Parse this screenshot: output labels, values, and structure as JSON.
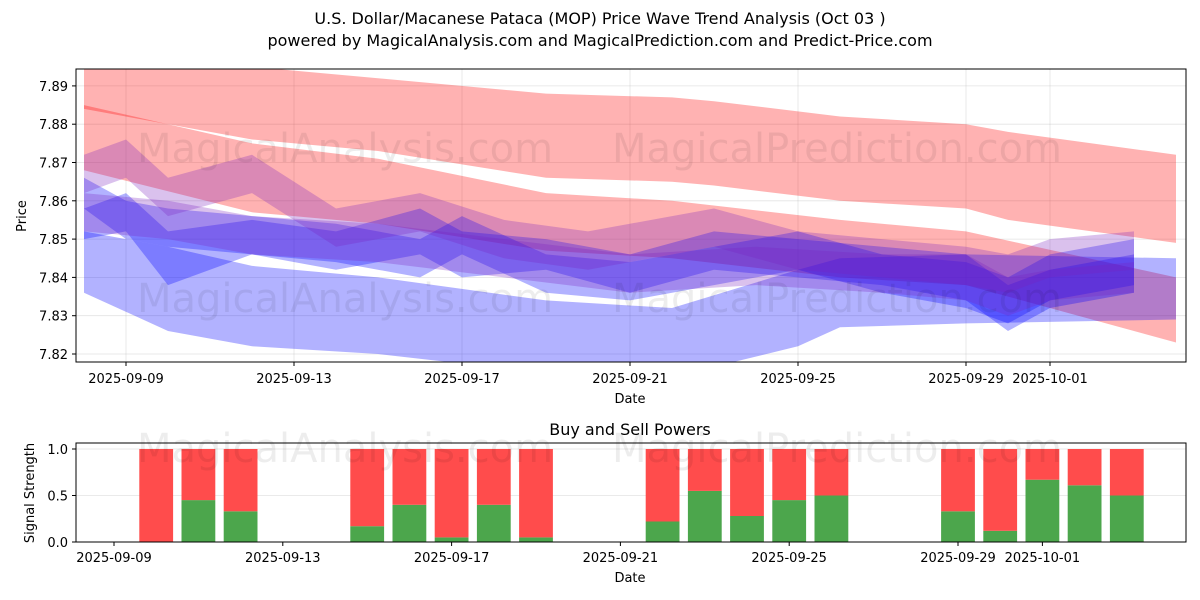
{
  "title": "U.S. Dollar/Macanese Pataca (MOP) Price Wave Trend Analysis (Oct 03 )",
  "subtitle": "powered by MagicalAnalysis.com and MagicalPrediction.com and Predict-Price.com",
  "watermarks": [
    "MagicalAnalysis.com",
    "MagicalPrediction.com"
  ],
  "colors": {
    "buy": "#4ca64c",
    "sell": "#ff4c4c",
    "red_band": "#ff0000",
    "blue_band": "#0000ff",
    "purple": "#7a1fc0"
  },
  "chart_data": [
    {
      "type": "area",
      "name": "price-wave",
      "title": "",
      "xlabel": "Date",
      "ylabel": "Price",
      "ylim": [
        7.818,
        7.894
      ],
      "xlim": [
        "2025-09-07",
        "2025-10-05"
      ],
      "yticks": [
        "7.82",
        "7.83",
        "7.84",
        "7.85",
        "7.86",
        "7.87",
        "7.88",
        "7.89"
      ],
      "xticks": [
        "2025-09-09",
        "2025-09-13",
        "2025-09-17",
        "2025-09-21",
        "2025-09-25",
        "2025-09-29",
        "2025-10-01"
      ],
      "grid": true,
      "series": [
        {
          "name": "red-upper-band",
          "color": "red",
          "x": [
            "2025-09-08",
            "2025-09-12",
            "2025-09-15",
            "2025-09-19",
            "2025-09-22",
            "2025-09-23",
            "2025-09-26",
            "2025-09-29",
            "2025-09-30",
            "2025-10-04"
          ],
          "upper": [
            7.898,
            7.895,
            7.892,
            7.888,
            7.887,
            7.886,
            7.882,
            7.88,
            7.878,
            7.872
          ],
          "lower": [
            7.884,
            7.876,
            7.873,
            7.866,
            7.865,
            7.864,
            7.86,
            7.858,
            7.855,
            7.849
          ]
        },
        {
          "name": "red-lower-band",
          "color": "red",
          "x": [
            "2025-09-08",
            "2025-09-12",
            "2025-09-15",
            "2025-09-19",
            "2025-09-22",
            "2025-09-26",
            "2025-09-29",
            "2025-10-04"
          ],
          "upper": [
            7.885,
            7.875,
            7.871,
            7.862,
            7.86,
            7.855,
            7.852,
            7.84
          ],
          "lower": [
            7.868,
            7.857,
            7.854,
            7.847,
            7.845,
            7.84,
            7.838,
            7.823
          ]
        },
        {
          "name": "blue-lower-band",
          "color": "blue",
          "x": [
            "2025-09-08",
            "2025-09-10",
            "2025-09-12",
            "2025-09-15",
            "2025-09-19",
            "2025-09-22",
            "2025-09-25",
            "2025-09-26",
            "2025-09-29",
            "2025-10-04"
          ],
          "upper": [
            7.852,
            7.848,
            7.843,
            7.84,
            7.834,
            7.832,
            7.842,
            7.845,
            7.846,
            7.845
          ],
          "lower": [
            7.836,
            7.826,
            7.822,
            7.82,
            7.815,
            7.814,
            7.822,
            7.827,
            7.828,
            7.829
          ]
        },
        {
          "name": "wave-mid-1",
          "color": "blue",
          "x": [
            "2025-09-08",
            "2025-09-09",
            "2025-09-10",
            "2025-09-12",
            "2025-09-14",
            "2025-09-16",
            "2025-09-17",
            "2025-09-19",
            "2025-09-21",
            "2025-09-23",
            "2025-09-25",
            "2025-09-27",
            "2025-09-29",
            "2025-09-30",
            "2025-10-01",
            "2025-10-03"
          ],
          "upper": [
            7.858,
            7.862,
            7.852,
            7.855,
            7.852,
            7.858,
            7.852,
            7.85,
            7.846,
            7.852,
            7.85,
            7.848,
            7.846,
            7.838,
            7.842,
            7.846
          ],
          "lower": [
            7.85,
            7.852,
            7.838,
            7.846,
            7.842,
            7.846,
            7.84,
            7.842,
            7.836,
            7.842,
            7.84,
            7.838,
            7.834,
            7.826,
            7.832,
            7.836
          ]
        },
        {
          "name": "wave-mid-2",
          "color": "blue",
          "x": [
            "2025-09-08",
            "2025-09-09",
            "2025-09-10",
            "2025-09-12",
            "2025-09-14",
            "2025-09-16",
            "2025-09-17",
            "2025-09-19",
            "2025-09-21",
            "2025-09-23",
            "2025-09-25",
            "2025-09-27",
            "2025-09-29",
            "2025-09-30",
            "2025-10-01",
            "2025-10-03"
          ],
          "upper": [
            7.866,
            7.86,
            7.858,
            7.856,
            7.854,
            7.85,
            7.856,
            7.846,
            7.844,
            7.848,
            7.852,
            7.846,
            7.844,
            7.84,
            7.846,
            7.85
          ],
          "lower": [
            7.858,
            7.85,
            7.848,
            7.846,
            7.844,
            7.84,
            7.846,
            7.836,
            7.834,
            7.838,
            7.842,
            7.836,
            7.832,
            7.828,
            7.834,
            7.838
          ]
        },
        {
          "name": "wave-purple-1",
          "color": "purple",
          "x": [
            "2025-09-08",
            "2025-09-09",
            "2025-09-10",
            "2025-09-12",
            "2025-09-14",
            "2025-09-16",
            "2025-09-18",
            "2025-09-20",
            "2025-09-22",
            "2025-09-23",
            "2025-09-25",
            "2025-09-27",
            "2025-09-29",
            "2025-09-30",
            "2025-10-01",
            "2025-10-03"
          ],
          "upper": [
            7.872,
            7.876,
            7.866,
            7.872,
            7.858,
            7.862,
            7.855,
            7.852,
            7.856,
            7.858,
            7.852,
            7.85,
            7.848,
            7.846,
            7.85,
            7.852
          ],
          "lower": [
            7.862,
            7.866,
            7.856,
            7.862,
            7.848,
            7.852,
            7.845,
            7.842,
            7.846,
            7.848,
            7.842,
            7.84,
            7.838,
            7.836,
            7.84,
            7.842
          ]
        },
        {
          "name": "wave-purple-2",
          "color": "purple",
          "x": [
            "2025-09-08",
            "2025-09-10",
            "2025-09-12",
            "2025-09-15",
            "2025-09-18",
            "2025-09-21",
            "2025-09-24",
            "2025-09-27",
            "2025-09-29",
            "2025-09-30",
            "2025-10-01",
            "2025-10-03"
          ],
          "upper": [
            7.862,
            7.86,
            7.856,
            7.854,
            7.85,
            7.846,
            7.848,
            7.846,
            7.846,
            7.84,
            7.842,
            7.844
          ],
          "lower": [
            7.852,
            7.85,
            7.846,
            7.844,
            7.84,
            7.836,
            7.838,
            7.836,
            7.834,
            7.83,
            7.834,
            7.836
          ]
        }
      ]
    },
    {
      "type": "bar",
      "name": "buy-sell-powers",
      "title": "Buy and Sell Powers",
      "xlabel": "Date",
      "ylabel": "Signal Strength",
      "ylim": [
        0,
        1.05
      ],
      "yticks": [
        "0.0",
        "0.5",
        "1.0"
      ],
      "xticks": [
        "2025-09-09",
        "2025-09-13",
        "2025-09-17",
        "2025-09-21",
        "2025-09-25",
        "2025-09-29",
        "2025-10-01"
      ],
      "grid": true,
      "categories": [
        "2025-09-10",
        "2025-09-11",
        "2025-09-12",
        "2025-09-15",
        "2025-09-16",
        "2025-09-17",
        "2025-09-18",
        "2025-09-19",
        "2025-09-22",
        "2025-09-23",
        "2025-09-24",
        "2025-09-25",
        "2025-09-26",
        "2025-09-29",
        "2025-09-30",
        "2025-10-01",
        "2025-10-02",
        "2025-10-03"
      ],
      "series": [
        {
          "name": "Buy",
          "color": "green",
          "values": [
            0.0,
            0.45,
            0.33,
            0.17,
            0.4,
            0.05,
            0.4,
            0.05,
            0.22,
            0.55,
            0.28,
            0.45,
            0.5,
            0.33,
            0.12,
            0.67,
            0.61,
            0.5
          ]
        },
        {
          "name": "Sell",
          "color": "red",
          "values": [
            1.0,
            0.55,
            0.67,
            0.83,
            0.6,
            0.95,
            0.6,
            0.95,
            0.78,
            0.45,
            0.72,
            0.55,
            0.5,
            0.67,
            0.88,
            0.33,
            0.39,
            0.5
          ]
        }
      ]
    }
  ]
}
